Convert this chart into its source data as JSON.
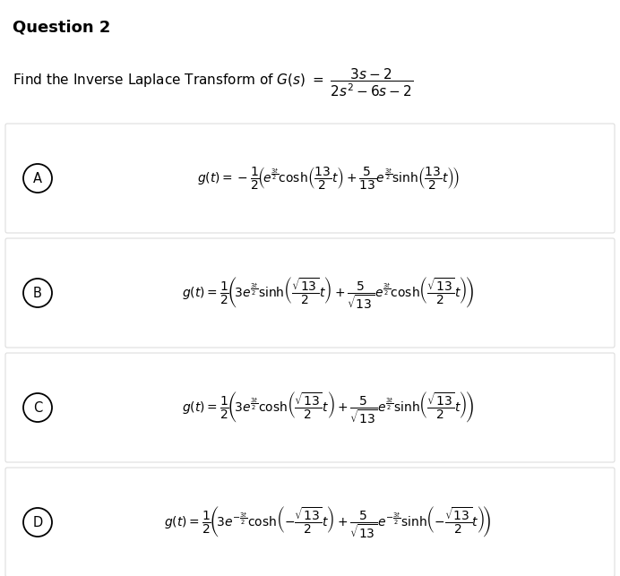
{
  "title": "Question 2",
  "bg_color": "#f2f2f2",
  "white": "#ffffff",
  "text_color": "#000000",
  "box_edge_color": "#dddddd",
  "question_prefix": "Find the Inverse Laplace Transform of $G\\left(s\\right) = $",
  "question_fraction": "$\\dfrac{3s-2}{2s^2-6s-2}$",
  "labels": [
    "A",
    "B",
    "C",
    "D"
  ],
  "formulas": [
    "$g\\left(t\\right) = -\\dfrac{1}{2}\\!\\left(\\!e^{\\frac{3t}{2}}\\cosh\\!\\left(\\dfrac{13}{2}t\\right)+\\dfrac{5}{13}e^{\\frac{3t}{2}}\\sinh\\!\\left(\\dfrac{13}{2}t\\right)\\!\\right)$",
    "$g\\left(t\\right) = \\dfrac{1}{2}\\!\\left(\\!3e^{\\frac{3t}{2}}\\sinh\\!\\left(\\dfrac{\\sqrt{13}}{2}t\\right)+\\dfrac{5}{\\sqrt{13}}e^{\\frac{3t}{2}}\\cosh\\!\\left(\\dfrac{\\sqrt{13}}{2}t\\right)\\!\\right)$",
    "$g\\left(t\\right) = \\dfrac{1}{2}\\!\\left(\\!3e^{\\frac{3t}{2}}\\cosh\\!\\left(\\dfrac{\\sqrt{13}}{2}t\\right)+\\dfrac{5}{\\sqrt{13}}e^{\\frac{3t}{2}}\\sinh\\!\\left(\\dfrac{\\sqrt{13}}{2}t\\right)\\!\\right)$",
    "$g\\left(t\\right) = \\dfrac{1}{2}\\!\\left(\\!3e^{-\\frac{3t}{2}}\\cosh\\!\\left(-\\dfrac{\\sqrt{13}}{2}t\\right)+\\dfrac{5}{\\sqrt{13}}e^{-\\frac{3t}{2}}\\sinh\\!\\left(-\\dfrac{\\sqrt{13}}{2}t\\right)\\!\\right)$"
  ],
  "fig_width": 6.92,
  "fig_height": 6.43,
  "dpi": 100
}
